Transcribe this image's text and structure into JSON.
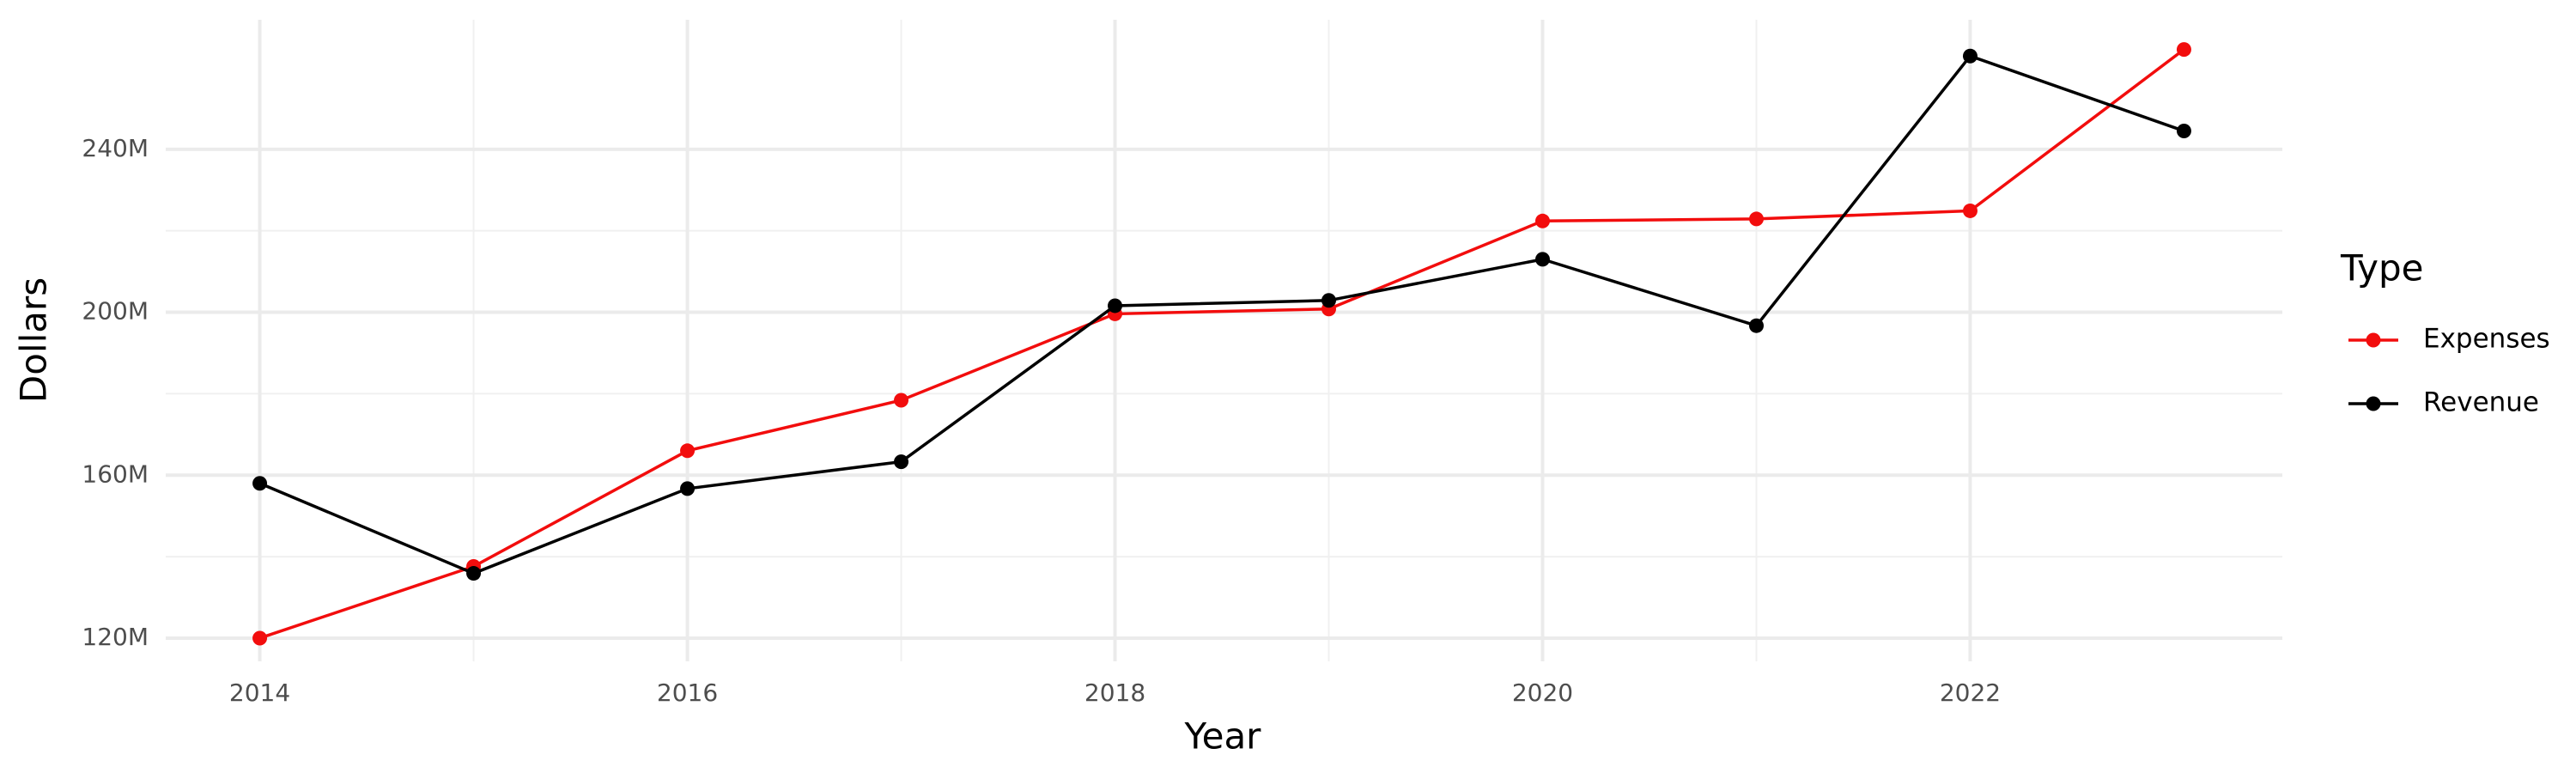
{
  "chart_data": {
    "type": "line",
    "x_label": "Year",
    "y_label": "Dollars",
    "legend_title": "Type",
    "legend_position": "right",
    "grid": true,
    "x": [
      2014,
      2015,
      2016,
      2017,
      2018,
      2019,
      2020,
      2021,
      2022,
      2023
    ],
    "series": [
      {
        "name": "Expenses",
        "color": "#f20d0d",
        "values": [
          120000000,
          137600000,
          166000000,
          178400000,
          199600000,
          200800000,
          222400000,
          222900000,
          224900000,
          264500000
        ]
      },
      {
        "name": "Revenue",
        "color": "#000000",
        "values": [
          158000000,
          135900000,
          156700000,
          163300000,
          201600000,
          202900000,
          213000000,
          196700000,
          262900000,
          244500000
        ]
      }
    ],
    "xlim": [
      2013.56,
      2023.46
    ],
    "xticks": [
      2014,
      2016,
      2018,
      2020,
      2022
    ],
    "ylim": [
      114300000,
      271800000
    ],
    "yticks": [
      {
        "value": 120000000,
        "label": "120M"
      },
      {
        "value": 160000000,
        "label": "160M"
      },
      {
        "value": 200000000,
        "label": "200M"
      },
      {
        "value": 240000000,
        "label": "240M"
      }
    ]
  }
}
